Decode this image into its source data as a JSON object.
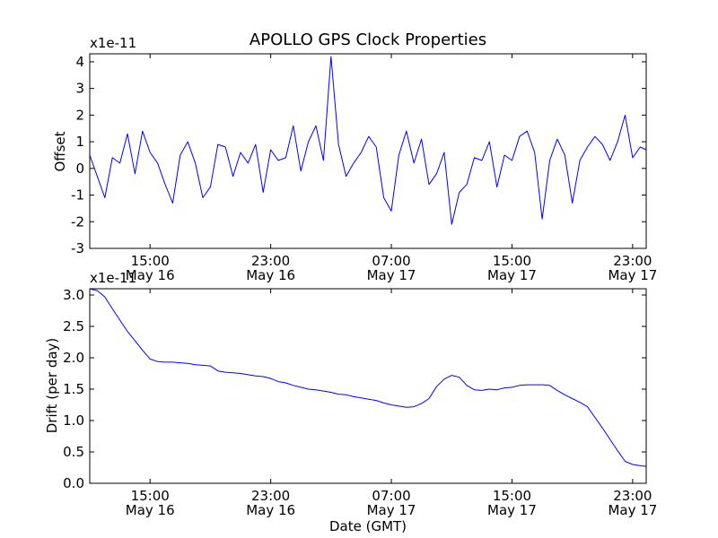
{
  "colors": {
    "series": "#0000ff",
    "axis": "#000000",
    "background": "#ffffff"
  },
  "chart_data": [
    {
      "type": "line",
      "title": "APOLLO GPS Clock Properties",
      "ylabel": "Offset",
      "xlabel": "",
      "scale_label": "x1e-11",
      "ylim": [
        -3,
        4.3
      ],
      "yticks": [
        -3,
        -2,
        -1,
        0,
        1,
        2,
        3,
        4
      ],
      "ytick_labels": [
        "-3",
        "-2",
        "-1",
        "0",
        "1",
        "2",
        "3",
        "4"
      ],
      "xlim_hours": [
        11.0,
        47.9
      ],
      "xticks": [
        {
          "hours": 15,
          "time": "15:00",
          "date": "May 16"
        },
        {
          "hours": 23,
          "time": "23:00",
          "date": "May 16"
        },
        {
          "hours": 31,
          "time": "07:00",
          "date": "May 17"
        },
        {
          "hours": 39,
          "time": "15:00",
          "date": "May 17"
        },
        {
          "hours": 47,
          "time": "23:00",
          "date": "May 17"
        }
      ],
      "series": [
        {
          "name": "Offset",
          "x_hours": [
            11.0,
            11.5,
            12.0,
            12.5,
            13.0,
            13.5,
            14.0,
            14.5,
            15.0,
            15.5,
            16.0,
            16.5,
            17.0,
            17.5,
            18.0,
            18.5,
            19.0,
            19.5,
            20.0,
            20.5,
            21.0,
            21.5,
            22.0,
            22.5,
            23.0,
            23.5,
            24.0,
            24.5,
            25.0,
            25.5,
            26.0,
            26.5,
            27.0,
            27.5,
            28.0,
            28.5,
            29.0,
            29.5,
            30.0,
            30.5,
            31.0,
            31.5,
            32.0,
            32.5,
            33.0,
            33.5,
            34.0,
            34.5,
            35.0,
            35.5,
            36.0,
            36.5,
            37.0,
            37.5,
            38.0,
            38.5,
            39.0,
            39.5,
            40.0,
            40.5,
            41.0,
            41.5,
            42.0,
            42.5,
            43.0,
            43.5,
            44.0,
            44.5,
            45.0,
            45.5,
            46.0,
            46.5,
            47.0,
            47.5,
            47.9
          ],
          "values": [
            0.5,
            -0.3,
            -1.1,
            0.4,
            0.2,
            1.3,
            -0.2,
            1.4,
            0.6,
            0.2,
            -0.6,
            -1.3,
            0.5,
            1.0,
            0.2,
            -1.1,
            -0.7,
            0.9,
            0.8,
            -0.3,
            0.6,
            0.2,
            0.9,
            -0.9,
            0.7,
            0.3,
            0.4,
            1.6,
            -0.1,
            1.0,
            1.6,
            0.3,
            4.2,
            0.9,
            -0.3,
            0.2,
            0.6,
            1.2,
            0.8,
            -1.1,
            -1.6,
            0.5,
            1.4,
            0.2,
            1.1,
            -0.6,
            -0.2,
            0.6,
            -2.1,
            -0.9,
            -0.6,
            0.4,
            0.3,
            1.0,
            -0.7,
            0.5,
            0.3,
            1.2,
            1.4,
            0.6,
            -1.9,
            0.3,
            1.1,
            0.5,
            -1.3,
            0.3,
            0.8,
            1.2,
            0.9,
            0.3,
            1.0,
            2.0,
            0.4,
            0.8,
            0.7
          ]
        }
      ]
    },
    {
      "type": "line",
      "title": "",
      "ylabel": "Drift (per day)",
      "xlabel": "Date (GMT)",
      "scale_label": "x1e-11",
      "ylim": [
        0.0,
        3.1
      ],
      "yticks": [
        0.0,
        0.5,
        1.0,
        1.5,
        2.0,
        2.5,
        3.0
      ],
      "ytick_labels": [
        "0.0",
        "0.5",
        "1.0",
        "1.5",
        "2.0",
        "2.5",
        "3.0"
      ],
      "xlim_hours": [
        11.0,
        47.9
      ],
      "xticks": [
        {
          "hours": 15,
          "time": "15:00",
          "date": "May 16"
        },
        {
          "hours": 23,
          "time": "23:00",
          "date": "May 16"
        },
        {
          "hours": 31,
          "time": "07:00",
          "date": "May 17"
        },
        {
          "hours": 39,
          "time": "15:00",
          "date": "May 17"
        },
        {
          "hours": 47,
          "time": "23:00",
          "date": "May 17"
        }
      ],
      "series": [
        {
          "name": "Drift",
          "x_hours": [
            11.0,
            11.5,
            12.0,
            12.5,
            13.0,
            13.5,
            14.0,
            14.5,
            15.0,
            15.5,
            16.0,
            16.5,
            17.0,
            17.5,
            18.0,
            18.5,
            19.0,
            19.5,
            20.0,
            20.5,
            21.0,
            21.5,
            22.0,
            22.5,
            23.0,
            23.5,
            24.0,
            24.5,
            25.0,
            25.5,
            26.0,
            26.5,
            27.0,
            27.5,
            28.0,
            28.5,
            29.0,
            29.5,
            30.0,
            30.5,
            31.0,
            31.5,
            32.0,
            32.5,
            33.0,
            33.5,
            34.0,
            34.5,
            35.0,
            35.5,
            36.0,
            36.5,
            37.0,
            37.5,
            38.0,
            38.5,
            39.0,
            39.5,
            40.0,
            40.5,
            41.0,
            41.5,
            42.0,
            42.5,
            43.0,
            43.5,
            44.0,
            44.5,
            45.0,
            45.5,
            46.0,
            46.5,
            47.0,
            47.5,
            47.9
          ],
          "values": [
            3.12,
            3.07,
            2.97,
            2.78,
            2.6,
            2.42,
            2.27,
            2.12,
            1.98,
            1.94,
            1.93,
            1.93,
            1.92,
            1.91,
            1.89,
            1.88,
            1.87,
            1.79,
            1.77,
            1.76,
            1.75,
            1.73,
            1.71,
            1.7,
            1.67,
            1.62,
            1.6,
            1.56,
            1.53,
            1.5,
            1.49,
            1.47,
            1.45,
            1.42,
            1.41,
            1.38,
            1.36,
            1.34,
            1.32,
            1.28,
            1.25,
            1.23,
            1.21,
            1.22,
            1.27,
            1.35,
            1.54,
            1.66,
            1.72,
            1.69,
            1.56,
            1.49,
            1.48,
            1.5,
            1.49,
            1.52,
            1.53,
            1.56,
            1.57,
            1.57,
            1.57,
            1.56,
            1.48,
            1.41,
            1.35,
            1.29,
            1.22,
            1.05,
            0.88,
            0.7,
            0.52,
            0.35,
            0.3,
            0.28,
            0.27
          ]
        }
      ]
    }
  ]
}
